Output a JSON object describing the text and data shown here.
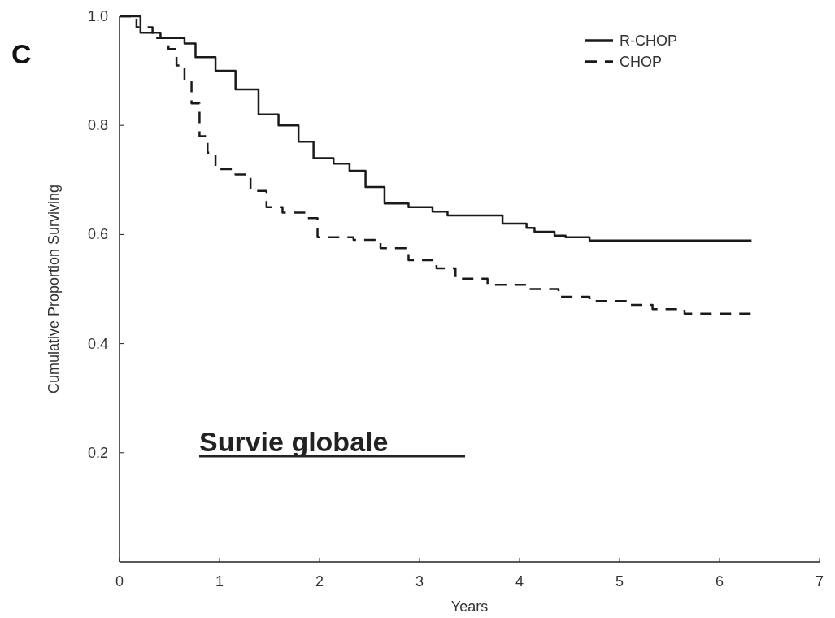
{
  "chart_data": {
    "type": "step",
    "xlabel": "Years",
    "ylabel": "Cumulative Proportion Surviving",
    "annotations": [
      "C",
      "Survie globale"
    ],
    "xlim": [
      0,
      7
    ],
    "xticks": [
      0,
      1,
      2,
      3,
      4,
      5,
      6,
      7
    ],
    "ylim": [
      0,
      1
    ],
    "yticks": [
      0.2,
      0.4,
      0.6,
      0.8,
      {
        "value": 1,
        "label": "1.0"
      }
    ],
    "grid": false,
    "legend": "top right",
    "series": [
      {
        "name": "R-CHOP",
        "color": "#1a1a1a",
        "line_style": "solid",
        "x": [
          0,
          0.21,
          0.41,
          0.65,
          0.76,
          0.96,
          1.16,
          1.39,
          1.59,
          1.79,
          1.94,
          2.14,
          2.3,
          2.46,
          2.65,
          2.89,
          3.13,
          3.28,
          3.83,
          4.07,
          4.15,
          4.35,
          4.46,
          4.7,
          6.32
        ],
        "values": [
          1,
          0.97,
          0.96,
          0.95,
          0.925,
          0.9,
          0.866,
          0.82,
          0.8,
          0.77,
          0.74,
          0.73,
          0.717,
          0.687,
          0.657,
          0.65,
          0.642,
          0.635,
          0.62,
          0.612,
          0.605,
          0.598,
          0.595,
          0.589,
          0.589
        ]
      },
      {
        "name": "CHOP",
        "color": "#1a1a1a",
        "line_style": "dashed",
        "x": [
          0,
          0.17,
          0.33,
          0.49,
          0.57,
          0.65,
          0.72,
          0.8,
          0.88,
          0.96,
          1.16,
          1.31,
          1.47,
          1.63,
          1.87,
          1.98,
          2.34,
          2.61,
          2.89,
          3.17,
          3.36,
          3.68,
          4.07,
          4.39,
          4.7,
          5.09,
          5.33,
          5.65,
          6.32
        ],
        "values": [
          1,
          0.98,
          0.96,
          0.94,
          0.91,
          0.88,
          0.84,
          0.78,
          0.75,
          0.72,
          0.71,
          0.68,
          0.65,
          0.64,
          0.63,
          0.595,
          0.59,
          0.575,
          0.553,
          0.538,
          0.519,
          0.508,
          0.5,
          0.486,
          0.478,
          0.471,
          0.463,
          0.455,
          0.455
        ]
      }
    ]
  }
}
